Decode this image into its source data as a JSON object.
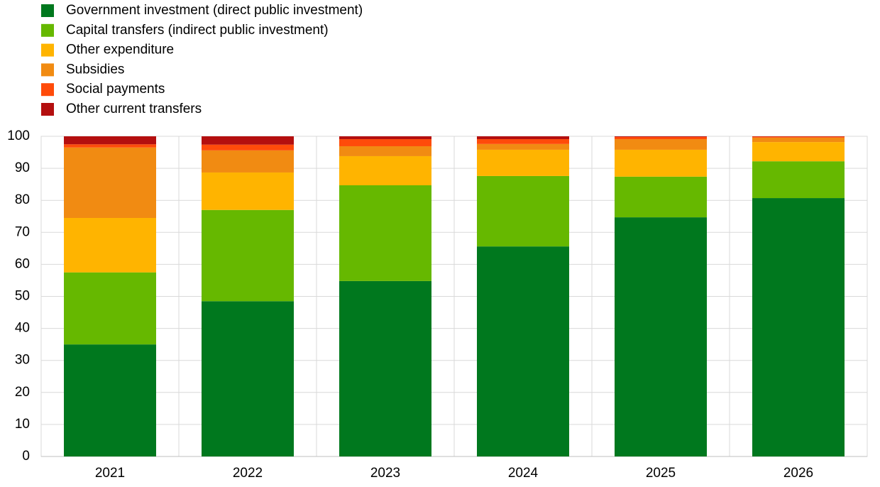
{
  "chart_data": {
    "type": "stacked-bar",
    "categories": [
      "2021",
      "2022",
      "2023",
      "2024",
      "2025",
      "2026"
    ],
    "series": [
      {
        "name": "Government investment (direct public investment)",
        "color": "#00781e",
        "values": [
          35,
          48.5,
          54.8,
          65.6,
          74.7,
          80.7
        ]
      },
      {
        "name": "Capital transfers (indirect public investment)",
        "color": "#66b800",
        "values": [
          22.5,
          28.5,
          29.9,
          22,
          12.7,
          11.5
        ]
      },
      {
        "name": "Other expenditure",
        "color": "#ffb400",
        "values": [
          17,
          11.7,
          9.1,
          8.2,
          8.4,
          6
        ]
      },
      {
        "name": "Subsidies",
        "color": "#f18b12",
        "values": [
          22,
          6.9,
          3.1,
          1.8,
          3.3,
          1.4
        ]
      },
      {
        "name": "Social payments",
        "color": "#ff4b0a",
        "values": [
          1,
          1.8,
          2.2,
          1.5,
          0.7,
          0.3
        ]
      },
      {
        "name": "Other current transfers",
        "color": "#b40f0f",
        "values": [
          2.5,
          2.6,
          0.9,
          0.9,
          0.2,
          0.1
        ]
      }
    ],
    "ylim": [
      0,
      100
    ],
    "yticks": [
      0,
      10,
      20,
      30,
      40,
      50,
      60,
      70,
      80,
      90,
      100
    ],
    "grid": true,
    "legend": "top-left"
  }
}
